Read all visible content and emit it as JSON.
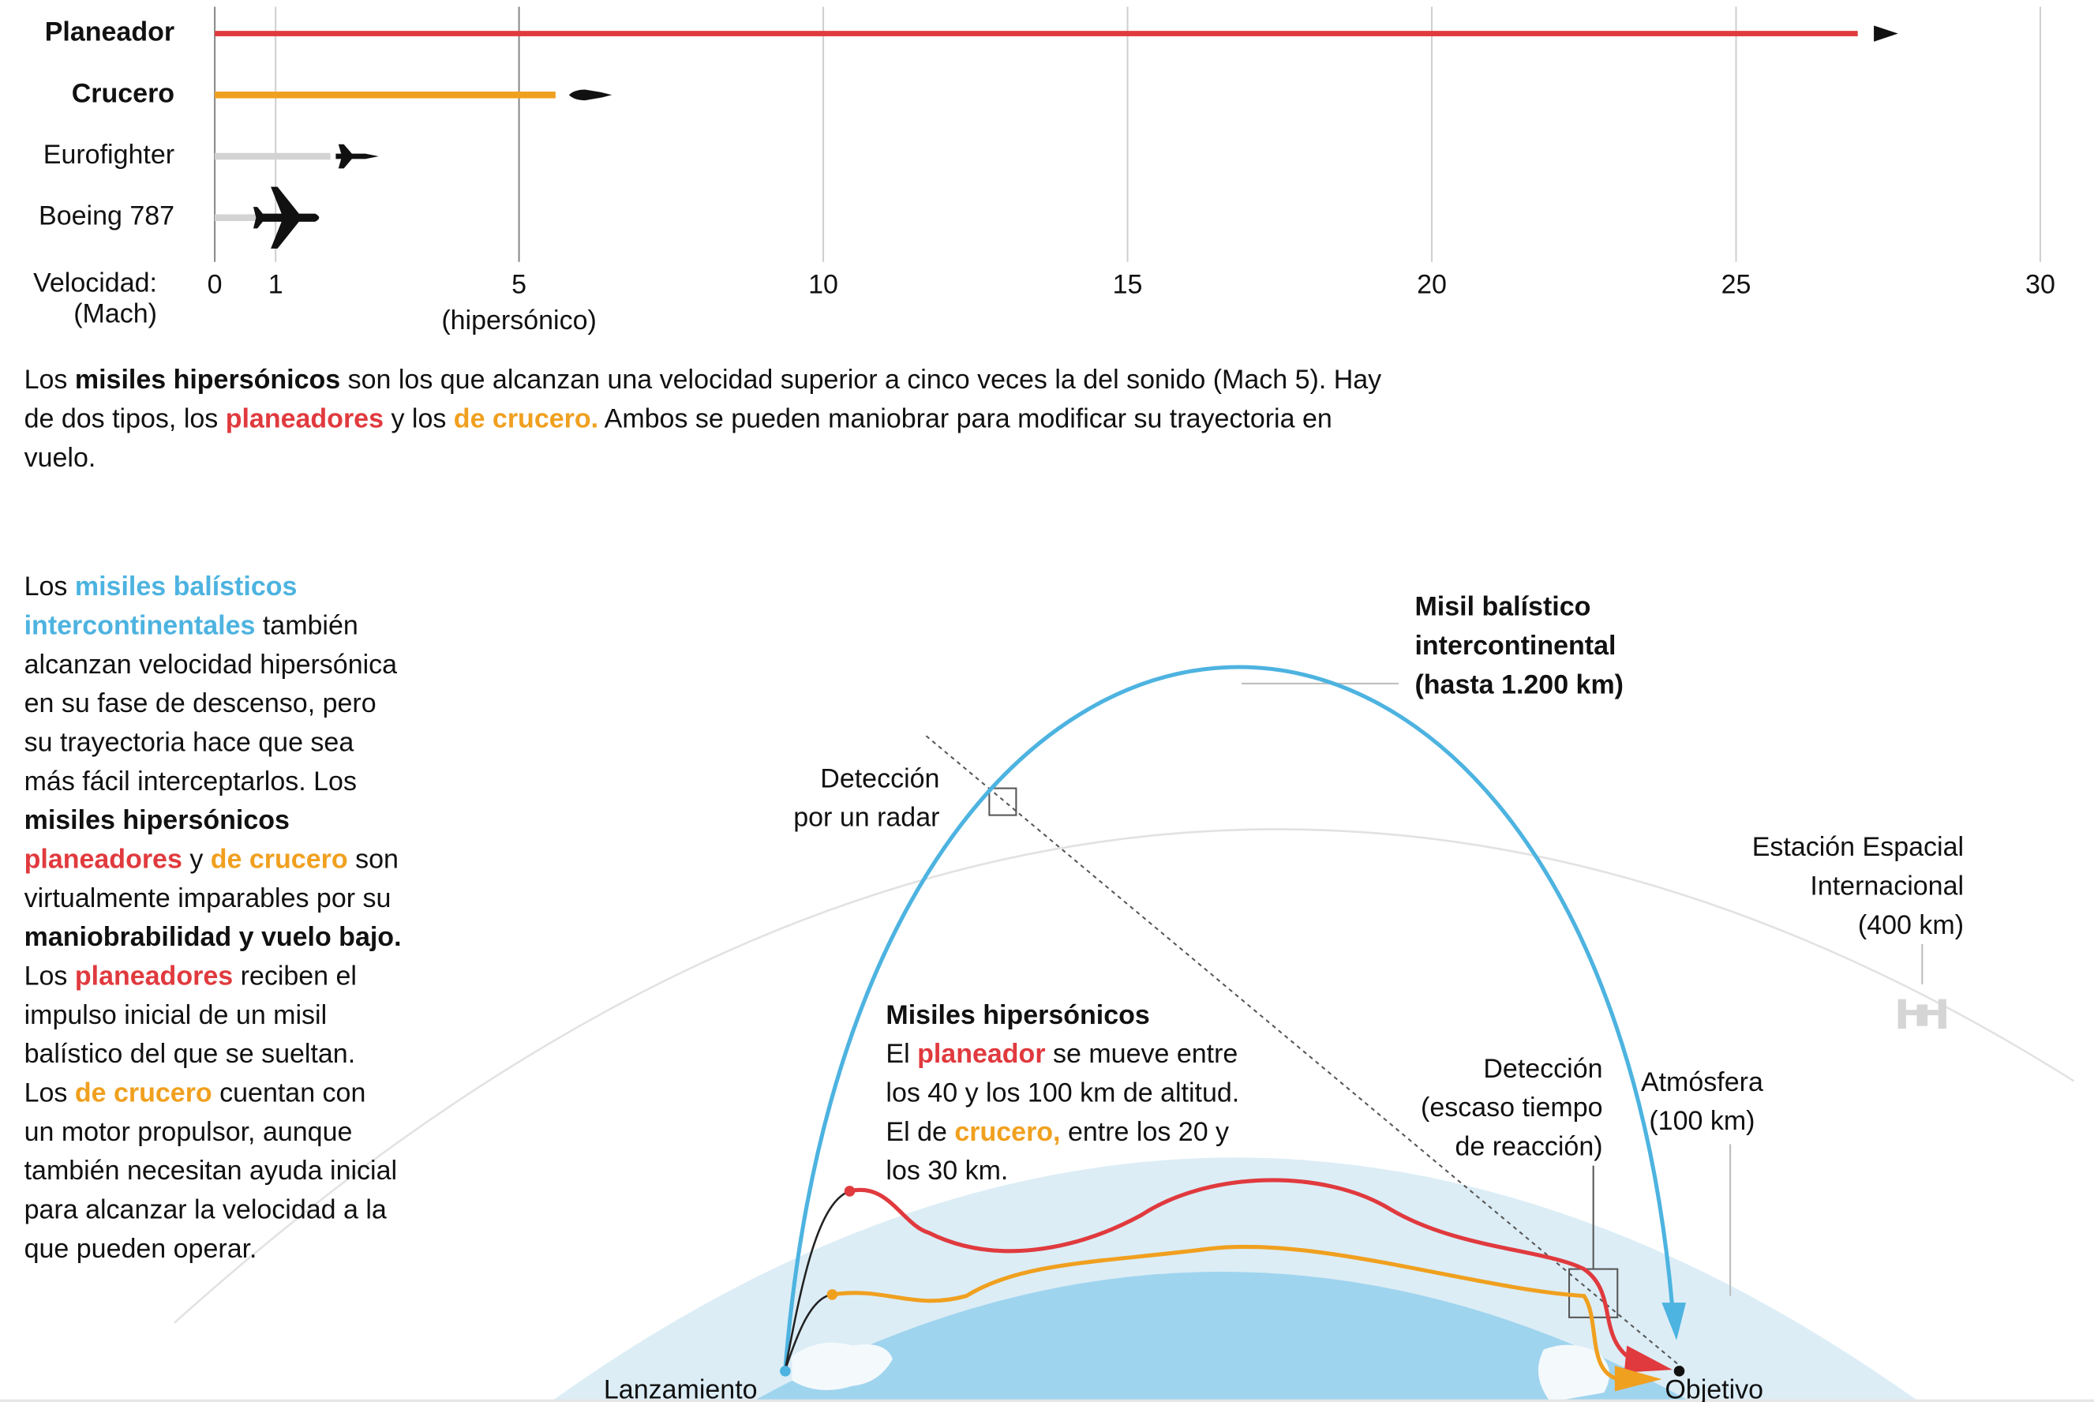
{
  "chart_data": {
    "type": "bar",
    "orientation": "horizontal",
    "categories": [
      "Planeador",
      "Crucero",
      "Eurofighter",
      "Boeing 787"
    ],
    "values": [
      27,
      5.6,
      1.9,
      0.7
    ],
    "colors": [
      "#e03a3e",
      "#f0a01f",
      "#d3d3d3",
      "#d3d3d3"
    ],
    "label_colors": [
      "#e03a3e",
      "#f0a01f",
      "#111111",
      "#111111"
    ],
    "markers": [
      "arrow",
      "missile",
      "jet",
      "plane"
    ],
    "xlabel": [
      "Velocidad:",
      "(Mach)"
    ],
    "xlim": [
      0,
      30
    ],
    "xticks": [
      0,
      1,
      5,
      10,
      15,
      20,
      25,
      30
    ],
    "xtick_notes": [
      null,
      null,
      "(hipersónico)",
      null,
      null,
      null,
      null,
      null
    ],
    "grid": true
  },
  "intro": {
    "lines": [
      [
        {
          "text": "Los "
        },
        {
          "text": "misiles hipersónicos",
          "style": "b"
        },
        {
          "text": " son los que alcanzan una velocidad superior a cinco veces la del sonido (Mach 5). Hay"
        }
      ],
      [
        {
          "text": "de dos tipos, los "
        },
        {
          "text": "planeadores",
          "style": "red"
        },
        {
          "text": " y los "
        },
        {
          "text": "de crucero.",
          "style": "orange"
        },
        {
          "text": " Ambos se pueden maniobrar para modificar su trayectoria en"
        }
      ],
      [
        {
          "text": "vuelo."
        }
      ]
    ]
  },
  "sidebar": {
    "lines": [
      [
        {
          "text": "Los "
        },
        {
          "text": "misiles balísticos",
          "style": "blue"
        }
      ],
      [
        {
          "text": "intercontinentales",
          "style": "blue"
        },
        {
          "text": " también"
        }
      ],
      [
        {
          "text": "alcanzan velocidad hipersónica"
        }
      ],
      [
        {
          "text": "en su fase de descenso, pero"
        }
      ],
      [
        {
          "text": "su trayectoria hace que sea"
        }
      ],
      [
        {
          "text": "más fácil interceptarlos. Los"
        }
      ],
      [
        {
          "text": "misiles hipersónicos",
          "style": "b"
        }
      ],
      [
        {
          "text": "planeadores",
          "style": "red"
        },
        {
          "text": " y "
        },
        {
          "text": "de crucero",
          "style": "orange"
        },
        {
          "text": " son"
        }
      ],
      [
        {
          "text": "virtualmente imparables por su"
        }
      ],
      [
        {
          "text": "maniobrabilidad y vuelo bajo.",
          "style": "b"
        }
      ],
      [
        {
          "text": "Los "
        },
        {
          "text": "planeadores",
          "style": "red"
        },
        {
          "text": " reciben el"
        }
      ],
      [
        {
          "text": "impulso inicial de un misil"
        }
      ],
      [
        {
          "text": "balístico del que se sueltan."
        }
      ],
      [
        {
          "text": "Los "
        },
        {
          "text": "de crucero",
          "style": "orange"
        },
        {
          "text": " cuentan con"
        }
      ],
      [
        {
          "text": "un motor propulsor, aunque"
        }
      ],
      [
        {
          "text": "también necesitan ayuda inicial"
        }
      ],
      [
        {
          "text": "para alcanzar la velocidad a la"
        }
      ],
      [
        {
          "text": "que pueden operar."
        }
      ]
    ]
  },
  "diagram": {
    "icbm_label": [
      "Misil balístico",
      "intercontinental",
      "(hasta 1.200 km)"
    ],
    "radar_label": [
      "Detección",
      "por un radar"
    ],
    "iss_label": [
      "Estación Espacial",
      "Internacional",
      "(400 km)"
    ],
    "hypersonic_note": [
      [
        {
          "text": "Misiles hipersónicos",
          "style": "b"
        }
      ],
      [
        {
          "text": "El "
        },
        {
          "text": "planeador",
          "style": "red"
        },
        {
          "text": " se mueve entre"
        }
      ],
      [
        {
          "text": "los 40 y los 100 km de altitud."
        }
      ],
      [
        {
          "text": "El de "
        },
        {
          "text": "crucero,",
          "style": "orange"
        },
        {
          "text": " entre los 20 y"
        }
      ],
      [
        {
          "text": "los 30 km."
        }
      ]
    ],
    "late_detection_label": [
      "Detección",
      "(escaso tiempo",
      "de reacción)"
    ],
    "atmosphere_label": [
      "Atmósfera",
      "(100 km)"
    ],
    "launch_label": "Lanzamiento",
    "target_label": "Objetivo"
  }
}
